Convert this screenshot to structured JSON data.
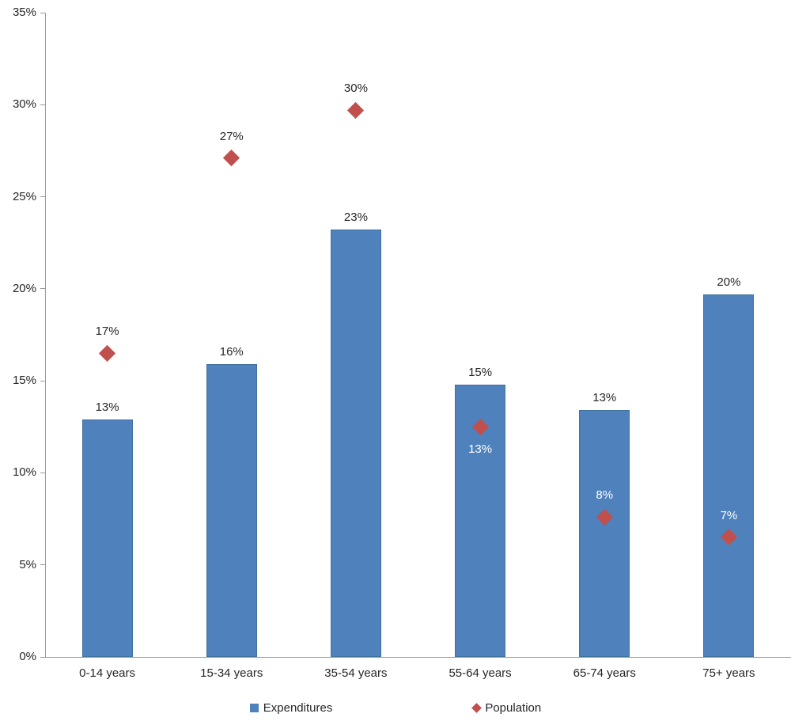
{
  "chart_data": {
    "type": "bar",
    "subtype": "bar-with-scatter-diamond-overlay",
    "categories": [
      "0-14 years",
      "15-34 years",
      "35-54 years",
      "55-64 years",
      "65-74 years",
      "75+ years"
    ],
    "series": [
      {
        "name": "Expenditures",
        "render_as": "bar",
        "color": "#4f81bd",
        "values": [
          12.9,
          15.9,
          23.2,
          14.8,
          13.4,
          19.7
        ],
        "labels": [
          "13%",
          "16%",
          "23%",
          "15%",
          "13%",
          "20%"
        ],
        "label_colors": [
          "#262626",
          "#262626",
          "#262626",
          "#262626",
          "#262626",
          "#262626"
        ]
      },
      {
        "name": "Population",
        "render_as": "scatter",
        "marker": "diamond",
        "color": "#c0504d",
        "values": [
          16.5,
          27.1,
          29.7,
          12.5,
          7.6,
          6.5
        ],
        "labels": [
          "17%",
          "27%",
          "30%",
          "13%",
          "8%",
          "7%"
        ],
        "label_placement": [
          "above",
          "above",
          "above",
          "below",
          "above",
          "above"
        ],
        "label_colors": [
          "#262626",
          "#262626",
          "#262626",
          "#ffffff",
          "#ffffff",
          "#ffffff"
        ]
      }
    ],
    "y_axis": {
      "min": 0,
      "max": 35,
      "step": 5,
      "tick_labels": [
        "0%",
        "5%",
        "10%",
        "15%",
        "20%",
        "25%",
        "30%",
        "35%"
      ]
    },
    "grid": "off",
    "legend_position": "bottom",
    "legend": [
      {
        "label": "Expenditures",
        "marker": "square",
        "color": "#4f81bd"
      },
      {
        "label": "Population",
        "marker": "diamond",
        "color": "#c0504d"
      }
    ],
    "axis_color": "#9b9b9b",
    "text_color": "#262626"
  }
}
